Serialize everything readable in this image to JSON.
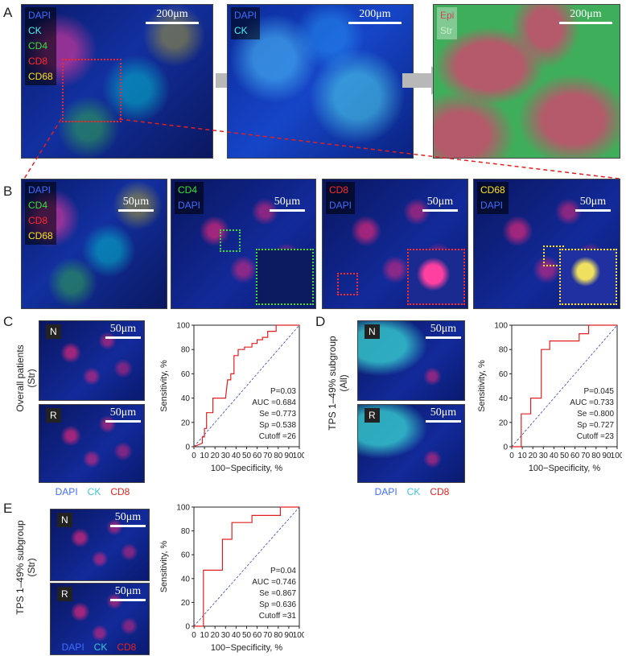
{
  "panels": {
    "A": {
      "letter": "A",
      "img1": {
        "labels": [
          {
            "text": "DAPI",
            "color": "#3f6dff"
          },
          {
            "text": "CK",
            "color": "#4ff0f0"
          },
          {
            "text": "CD4",
            "color": "#39e039"
          },
          {
            "text": "CD8",
            "color": "#ff2a2a"
          },
          {
            "text": "CD68",
            "color": "#ffe21a"
          }
        ],
        "scale": "200μm"
      },
      "img2": {
        "labels": [
          {
            "text": "DAPI",
            "color": "#3f6dff"
          },
          {
            "text": "CK",
            "color": "#4ff0f0"
          }
        ],
        "scale": "200μm"
      },
      "img3": {
        "labels": [
          {
            "text": "Epi",
            "color": "#c24c5c"
          },
          {
            "text": "Str",
            "color": "#7ad08a"
          }
        ],
        "scale": "200μm"
      }
    },
    "B": {
      "letter": "B",
      "img1": {
        "labels": [
          {
            "text": "DAPI",
            "color": "#3f6dff"
          },
          {
            "text": "CD4",
            "color": "#39e039"
          },
          {
            "text": "CD8",
            "color": "#ff2a2a"
          },
          {
            "text": "CD68",
            "color": "#ffe21a"
          }
        ],
        "scale": "50μm"
      },
      "img2": {
        "labels": [
          {
            "text": "CD4",
            "color": "#39e039"
          },
          {
            "text": "DAPI",
            "color": "#3f6dff"
          }
        ],
        "scale": "50μm",
        "inset_color": "#39e039"
      },
      "img3": {
        "labels": [
          {
            "text": "CD8",
            "color": "#ff2a2a"
          },
          {
            "text": "DAPI",
            "color": "#3f6dff"
          }
        ],
        "scale": "50μm",
        "inset_color": "#ff2a2a"
      },
      "img4": {
        "labels": [
          {
            "text": "CD68",
            "color": "#ffe21a"
          },
          {
            "text": "DAPI",
            "color": "#3f6dff"
          }
        ],
        "scale": "50μm",
        "inset_color": "#ffe21a"
      }
    },
    "C": {
      "letter": "C",
      "side_label": "Overall patients\n(Str)",
      "top_tag": "N",
      "bottom_tag": "R",
      "scale": "50μm",
      "legend": [
        {
          "text": "DAPI",
          "color": "#3f6dff"
        },
        {
          "text": "CK",
          "color": "#3cc6d8"
        },
        {
          "text": "CD8",
          "color": "#e52020"
        }
      ]
    },
    "D": {
      "letter": "D",
      "side_label": "TPS 1–49% subgroup\n(All)",
      "top_tag": "N",
      "bottom_tag": "R",
      "scale": "50μm",
      "legend": [
        {
          "text": "DAPI",
          "color": "#3f6dff"
        },
        {
          "text": "CK",
          "color": "#3cc6d8"
        },
        {
          "text": "CD8",
          "color": "#e52020"
        }
      ]
    },
    "E": {
      "letter": "E",
      "side_label": "TPS 1–49% subgroup\n(Str)",
      "top_tag": "N",
      "bottom_tag": "R",
      "scale": "50μm",
      "legend": [
        {
          "text": "DAPI",
          "color": "#3f6dff"
        },
        {
          "text": "CK",
          "color": "#3cc6d8"
        },
        {
          "text": "CD8",
          "color": "#e52020"
        }
      ]
    }
  },
  "chart_data": [
    {
      "type": "line",
      "panel": "C",
      "xlabel": "100−Specificity, %",
      "ylabel": "Sensitivity, %",
      "xlim": [
        0,
        100
      ],
      "ylim": [
        0,
        100
      ],
      "x": [
        0,
        8,
        8,
        10,
        10,
        12,
        12,
        18,
        18,
        30,
        30,
        32,
        35,
        35,
        38,
        38,
        42,
        42,
        48,
        48,
        55,
        55,
        60,
        60,
        65,
        65,
        70,
        70,
        78,
        78,
        100
      ],
      "y": [
        0,
        3,
        8,
        8,
        15,
        15,
        28,
        28,
        40,
        40,
        40,
        55,
        55,
        60,
        60,
        75,
        75,
        80,
        80,
        82,
        82,
        85,
        85,
        88,
        88,
        90,
        90,
        95,
        95,
        100,
        100
      ],
      "stats": [
        "P=0.03",
        "AUC =0.684",
        "Se =0.773",
        "Sp =0.538",
        "Cutoff =26"
      ]
    },
    {
      "type": "line",
      "panel": "D",
      "xlabel": "100−Specificity, %",
      "ylabel": "Sensitivity, %",
      "xlim": [
        0,
        100
      ],
      "ylim": [
        0,
        100
      ],
      "x": [
        0,
        9,
        9,
        18,
        18,
        28,
        28,
        36,
        36,
        64,
        64,
        73,
        73,
        100
      ],
      "y": [
        0,
        0,
        27,
        27,
        40,
        40,
        80,
        80,
        87,
        87,
        93,
        93,
        100,
        100
      ],
      "stats": [
        "P=0.045",
        "AUC =0.733",
        "Se =0.800",
        "Sp =0.727",
        "Cutoff =23"
      ]
    },
    {
      "type": "line",
      "panel": "E",
      "xlabel": "100−Specificity, %",
      "ylabel": "Sensitivity, %",
      "xlim": [
        0,
        100
      ],
      "ylim": [
        0,
        100
      ],
      "x": [
        0,
        9,
        9,
        27,
        27,
        36,
        36,
        55,
        55,
        82,
        82,
        100
      ],
      "y": [
        0,
        0,
        47,
        47,
        73,
        73,
        87,
        87,
        93,
        93,
        100,
        100
      ],
      "stats": [
        "P=0.04",
        "AUC =0.746",
        "Se =0.867",
        "Sp =0.636",
        "Cutoff =31"
      ]
    }
  ],
  "ticks": [
    "0",
    "10",
    "20",
    "30",
    "40",
    "50",
    "60",
    "70",
    "80",
    "90",
    "100"
  ],
  "colors": {
    "roc": "#e02020",
    "diag": "#3a4ab0",
    "frame": "#222222"
  }
}
